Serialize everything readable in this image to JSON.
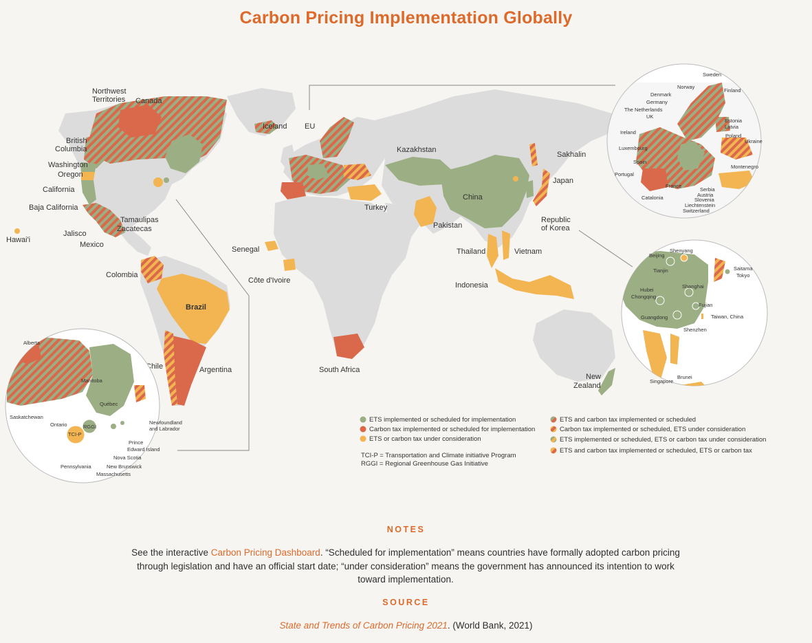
{
  "title": "Carbon Pricing Implementation Globally",
  "colors": {
    "ets": "#9cae83",
    "tax": "#d9694a",
    "consideration": "#f2b552",
    "land": "#dcdcdc",
    "accent": "#dd6a2b"
  },
  "region_labels": {
    "northwest_territories_1": "Northwest",
    "northwest_territories_2": "Territories",
    "canada": "Canada",
    "british_columbia_1": "British",
    "british_columbia_2": "Columbia",
    "washington": "Washington",
    "oregon": "Oregon",
    "california": "California",
    "baja_california": "Baja California",
    "tamaulipas": "Tamaulipas",
    "zacatecas": "Zacatecas",
    "jalisco": "Jalisco",
    "mexico": "Mexico",
    "hawaii": "Hawai'i",
    "colombia": "Colombia",
    "brazil": "Brazil",
    "chile": "Chile",
    "argentina": "Argentina",
    "iceland": "Iceland",
    "eu": "EU",
    "senegal": "Senegal",
    "cote_divoire": "Côte d'Ivoire",
    "turkey": "Turkey",
    "south_africa": "South Africa",
    "kazakhstan": "Kazakhstan",
    "china": "China",
    "pakistan": "Pakistan",
    "thailand": "Thailand",
    "vietnam": "Vietnam",
    "indonesia": "Indonesia",
    "sakhalin": "Sakhalin",
    "japan": "Japan",
    "korea_1": "Republic",
    "korea_2": "of Korea",
    "new_zealand_1": "New",
    "new_zealand_2": "Zealand"
  },
  "inset_europe": {
    "sweden": "Sweden",
    "norway": "Norway",
    "finland": "Finland",
    "denmark": "Denmark",
    "germany": "Germany",
    "netherlands": "The Netherlands",
    "uk": "UK",
    "estonia": "Estonia",
    "latvia": "Latvia",
    "ireland": "Ireland",
    "poland": "Poland",
    "ukraine": "Ukraine",
    "luxembourg": "Luxembourg",
    "spain": "Spain",
    "montenegro": "Montenegro",
    "portugal": "Portugal",
    "france": "France",
    "serbia": "Serbia",
    "austria": "Austria",
    "slovenia": "Slovenia",
    "catalonia": "Catalonia",
    "liechtenstein": "Liechtenstein",
    "switzerland": "Switzerland"
  },
  "inset_asia": {
    "shenyang": "Shenyang",
    "beijing": "Beijing",
    "tianjin": "Tianjin",
    "saitama": "Saitama",
    "tokyo": "Tokyo",
    "shanghai": "Shanghai",
    "hubei": "Hubei",
    "chongqing": "Chongqing",
    "fujian": "Fujian",
    "guangdong": "Guangdong",
    "taiwan": "Taiwan, China",
    "shenzhen": "Shenzhen",
    "brunei": "Brunei",
    "singapore": "Singapore"
  },
  "inset_na": {
    "alberta": "Alberta",
    "manitoba": "Manitoba",
    "quebec": "Québec",
    "saskatchewan": "Saskatchewan",
    "ontario": "Ontario",
    "rggi": "RGGI",
    "tcip": "TCI-P",
    "newfoundland_1": "Newfoundland",
    "newfoundland_2": "and Labrador",
    "pei_1": "Prince",
    "pei_2": "Edward Island",
    "nova_scotia": "Nova Scotia",
    "new_brunswick": "New Brunswick",
    "pennsylvania": "Pennsylvania",
    "massachusetts": "Massachusetts"
  },
  "legend": {
    "left": [
      "ETS implemented or scheduled for implementation",
      "Carbon tax implemented or scheduled for implementation",
      "ETS or carbon tax under consideration"
    ],
    "right": [
      "ETS and carbon tax implemented or scheduled",
      "Carbon tax implemented or scheduled, ETS under consideration",
      "ETS implemented or scheduled, ETS or carbon tax under consideration",
      "ETS and carbon tax implemented or scheduled, ETS or carbon tax"
    ],
    "abbr_1": "TCI-P = Transportation and Climate initiative Program",
    "abbr_2": "RGGI = Regional Greenhouse Gas Initiative"
  },
  "notes": {
    "heading": "NOTES",
    "prefix": "See the interactive ",
    "link": "Carbon Pricing Dashboard",
    "body": ". “Scheduled for implementation” means countries have formally adopted carbon pricing through legislation and have an official start date; “under consideration” means the government has announced its intention to work toward implementation."
  },
  "source": {
    "heading": "SOURCE",
    "title": "State and Trends of Carbon Pricing 2021",
    "rest": ". (World Bank, 2021)"
  }
}
